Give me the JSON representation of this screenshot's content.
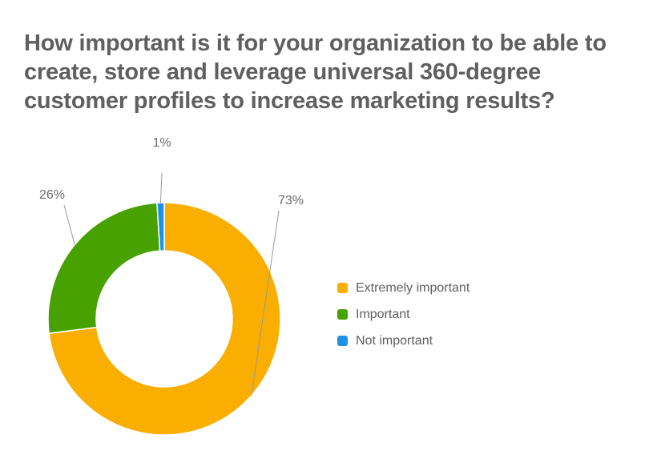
{
  "chart_data": {
    "type": "pie",
    "title": "How important is it for your organization to be able to create, store and leverage universal 360-degree customer profiles to increase marketing results?",
    "categories": [
      "Extremely important",
      "Important",
      "Not important"
    ],
    "values": [
      73,
      26,
      1
    ],
    "data_labels": [
      "73%",
      "26%",
      "1%"
    ],
    "colors": [
      "#F9AE00",
      "#47A100",
      "#1E92E6"
    ],
    "style": "donut",
    "legend_position": "right"
  }
}
